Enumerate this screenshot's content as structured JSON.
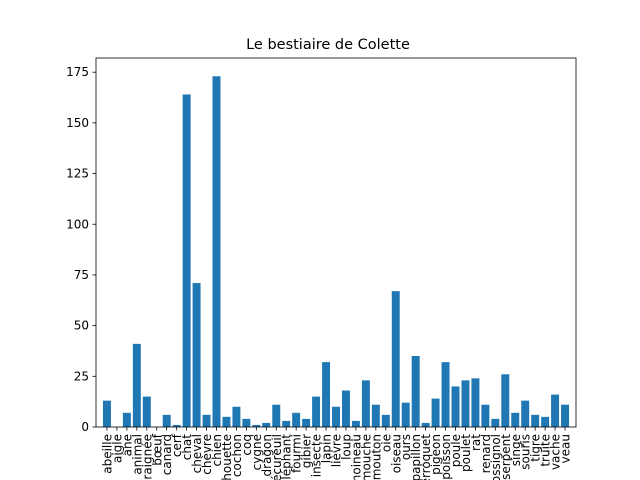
{
  "chart_data": {
    "type": "bar",
    "title": "Le bestiaire de Colette",
    "xlabel": "",
    "ylabel": "",
    "ylim": [
      0,
      182
    ],
    "yticks": [
      0,
      25,
      50,
      75,
      100,
      125,
      150,
      175
    ],
    "grid": false,
    "bar_color": "#1f77b4",
    "categories": [
      "abeille",
      "aigle",
      "âne",
      "animal",
      "araignée",
      "bœuf",
      "canard",
      "cerf",
      "chat",
      "cheval",
      "chèvre",
      "chien",
      "chouette",
      "cochon",
      "coq",
      "cygne",
      "dragon",
      "écureuil",
      "éléphant",
      "fourmi",
      "gibier",
      "insecte",
      "lapin",
      "lièvre",
      "loup",
      "moineau",
      "mouche",
      "mouton",
      "oie",
      "oiseau",
      "ours",
      "papillon",
      "perroquet",
      "pigeon",
      "poisson",
      "poule",
      "poulet",
      "rat",
      "renard",
      "rossignol",
      "serpent",
      "singe",
      "souris",
      "tigre",
      "truite",
      "vache",
      "veau"
    ],
    "values": [
      13,
      0,
      7,
      41,
      15,
      0,
      6,
      1,
      164,
      71,
      6,
      173,
      5,
      10,
      4,
      1,
      2,
      11,
      3,
      7,
      4,
      15,
      32,
      10,
      18,
      3,
      23,
      11,
      6,
      67,
      12,
      35,
      2,
      14,
      32,
      20,
      23,
      24,
      11,
      4,
      26,
      7,
      13,
      6,
      5,
      16,
      11
    ]
  }
}
